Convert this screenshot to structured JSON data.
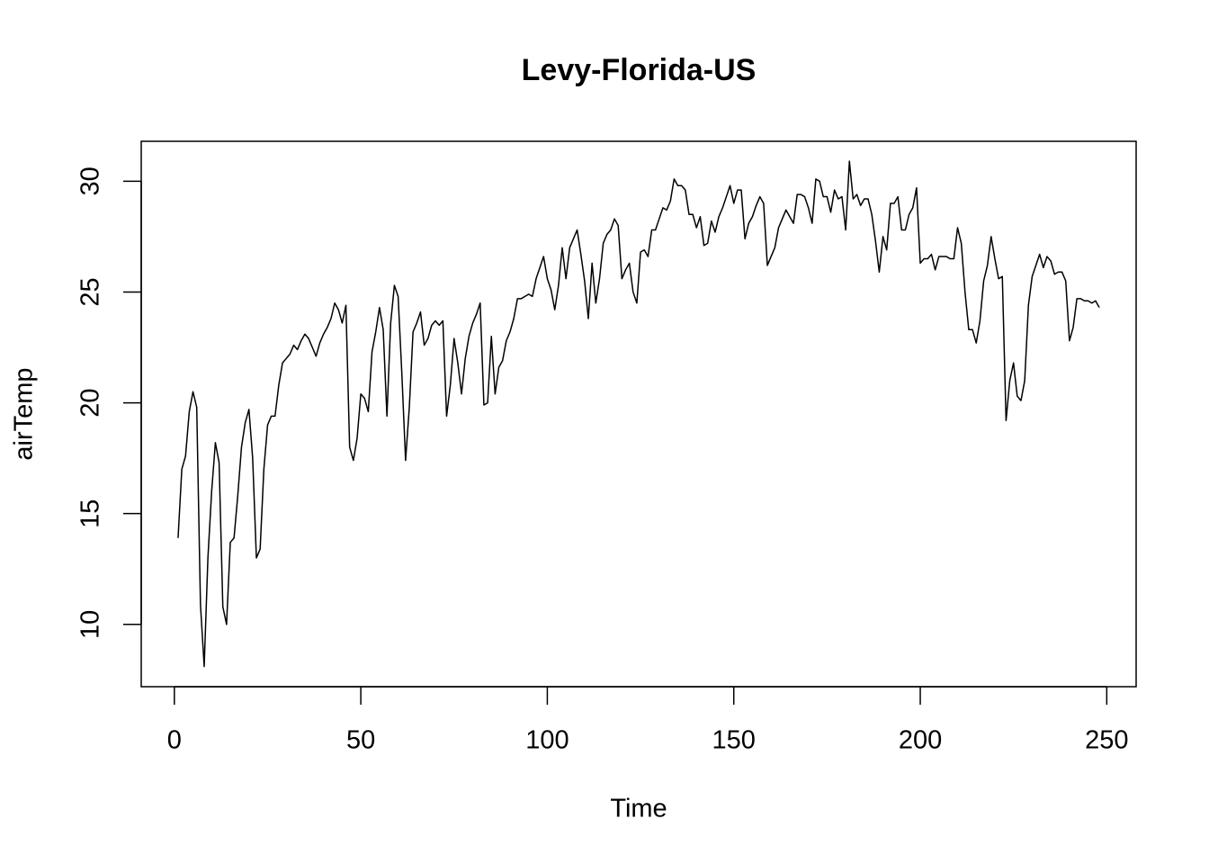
{
  "chart_data": {
    "type": "line",
    "title": "Levy-Florida-US",
    "x_label": "Time",
    "y_label": "airTemp",
    "x": [
      1,
      2,
      3,
      4,
      5,
      6,
      7,
      8,
      9,
      10,
      11,
      12,
      13,
      14,
      15,
      16,
      17,
      18,
      19,
      20,
      21,
      22,
      23,
      24,
      25,
      26,
      27,
      28,
      29,
      30,
      31,
      32,
      33,
      34,
      35,
      36,
      37,
      38,
      39,
      40,
      41,
      42,
      43,
      44,
      45,
      46,
      47,
      48,
      49,
      50,
      51,
      52,
      53,
      54,
      55,
      56,
      57,
      58,
      59,
      60,
      61,
      62,
      63,
      64,
      65,
      66,
      67,
      68,
      69,
      70,
      71,
      72,
      73,
      74,
      75,
      76,
      77,
      78,
      79,
      80,
      81,
      82,
      83,
      84,
      85,
      86,
      87,
      88,
      89,
      90,
      91,
      92,
      93,
      94,
      95,
      96,
      97,
      98,
      99,
      100,
      101,
      102,
      103,
      104,
      105,
      106,
      107,
      108,
      109,
      110,
      111,
      112,
      113,
      114,
      115,
      116,
      117,
      118,
      119,
      120,
      121,
      122,
      123,
      124,
      125,
      126,
      127,
      128,
      129,
      130,
      131,
      132,
      133,
      134,
      135,
      136,
      137,
      138,
      139,
      140,
      141,
      142,
      143,
      144,
      145,
      146,
      147,
      148,
      149,
      150,
      151,
      152,
      153,
      154,
      155,
      156,
      157,
      158,
      159,
      160,
      161,
      162,
      163,
      164,
      165,
      166,
      167,
      168,
      169,
      170,
      171,
      172,
      173,
      174,
      175,
      176,
      177,
      178,
      179,
      180,
      181,
      182,
      183,
      184,
      185,
      186,
      187,
      188,
      189,
      190,
      191,
      192,
      193,
      194,
      195,
      196,
      197,
      198,
      199,
      200,
      201,
      202,
      203,
      204,
      205,
      206,
      207,
      208,
      209,
      210,
      211,
      212,
      213,
      214,
      215,
      216,
      217,
      218,
      219,
      220,
      221,
      222,
      223,
      224,
      225,
      226,
      227,
      228,
      229,
      230,
      231,
      232,
      233,
      234,
      235,
      236,
      237,
      238,
      239,
      240,
      241,
      242,
      243,
      244,
      245,
      246,
      247,
      248
    ],
    "series": [
      {
        "name": "airTemp",
        "color": "#000000",
        "values": [
          13.9,
          17.0,
          17.6,
          19.6,
          20.5,
          19.8,
          10.9,
          8.1,
          13.0,
          16.0,
          18.2,
          17.3,
          10.8,
          10.0,
          13.7,
          13.9,
          15.8,
          18.0,
          19.1,
          19.7,
          17.5,
          13.0,
          13.4,
          17.0,
          19.0,
          19.4,
          19.4,
          20.8,
          21.8,
          22.0,
          22.2,
          22.6,
          22.4,
          22.8,
          23.1,
          22.9,
          22.5,
          22.1,
          22.7,
          23.1,
          23.4,
          23.8,
          24.5,
          24.2,
          23.6,
          24.4,
          18.0,
          17.4,
          18.4,
          20.4,
          20.2,
          19.6,
          22.3,
          23.2,
          24.3,
          23.3,
          19.4,
          23.6,
          25.3,
          24.8,
          21.3,
          17.4,
          19.8,
          23.2,
          23.6,
          24.1,
          22.6,
          22.9,
          23.5,
          23.7,
          23.5,
          23.7,
          19.4,
          20.8,
          22.9,
          21.8,
          20.4,
          22.0,
          23.0,
          23.6,
          24.0,
          24.5,
          19.9,
          20.0,
          23.0,
          20.4,
          21.6,
          21.9,
          22.8,
          23.2,
          23.8,
          24.7,
          24.7,
          24.8,
          24.9,
          24.8,
          25.6,
          26.1,
          26.6,
          25.6,
          25.1,
          24.2,
          25.3,
          27.0,
          25.6,
          27.0,
          27.4,
          27.8,
          26.7,
          25.5,
          23.8,
          26.3,
          24.5,
          25.6,
          27.2,
          27.6,
          27.8,
          28.3,
          28.0,
          25.6,
          26.0,
          26.3,
          25.0,
          24.5,
          26.8,
          26.9,
          26.6,
          27.8,
          27.8,
          28.3,
          28.8,
          28.7,
          29.1,
          30.1,
          29.8,
          29.8,
          29.6,
          28.5,
          28.5,
          27.9,
          28.4,
          27.1,
          27.2,
          28.2,
          27.7,
          28.4,
          28.8,
          29.3,
          29.8,
          29.0,
          29.6,
          29.6,
          27.4,
          28.1,
          28.4,
          28.9,
          29.3,
          29.0,
          26.2,
          26.6,
          27.0,
          27.9,
          28.3,
          28.7,
          28.4,
          28.1,
          29.4,
          29.4,
          29.3,
          28.8,
          28.1,
          30.1,
          30.0,
          29.3,
          29.3,
          28.6,
          29.6,
          29.2,
          29.3,
          27.8,
          30.9,
          29.2,
          29.4,
          28.9,
          29.2,
          29.2,
          28.5,
          27.3,
          25.9,
          27.5,
          26.9,
          29.0,
          29.0,
          29.3,
          27.8,
          27.8,
          28.5,
          28.8,
          29.7,
          26.3,
          26.5,
          26.5,
          26.7,
          26.0,
          26.6,
          26.6,
          26.6,
          26.5,
          26.5,
          27.9,
          27.2,
          25.0,
          23.3,
          23.3,
          22.7,
          23.7,
          25.5,
          26.2,
          27.5,
          26.5,
          25.6,
          25.7,
          19.2,
          21.0,
          21.8,
          20.3,
          20.1,
          21.0,
          24.4,
          25.7,
          26.2,
          26.7,
          26.1,
          26.6,
          26.4,
          25.8,
          25.9,
          25.9,
          25.5,
          22.8,
          23.4,
          24.7,
          24.7,
          24.6,
          24.6,
          24.5,
          24.6,
          24.3
        ]
      }
    ],
    "xlim": [
      -8.88,
      257.88
    ],
    "ylim": [
      7.19,
      31.8
    ],
    "xticks": [
      0,
      50,
      100,
      150,
      200,
      250
    ],
    "yticks": [
      10,
      15,
      20,
      25,
      30
    ],
    "grid": false
  }
}
